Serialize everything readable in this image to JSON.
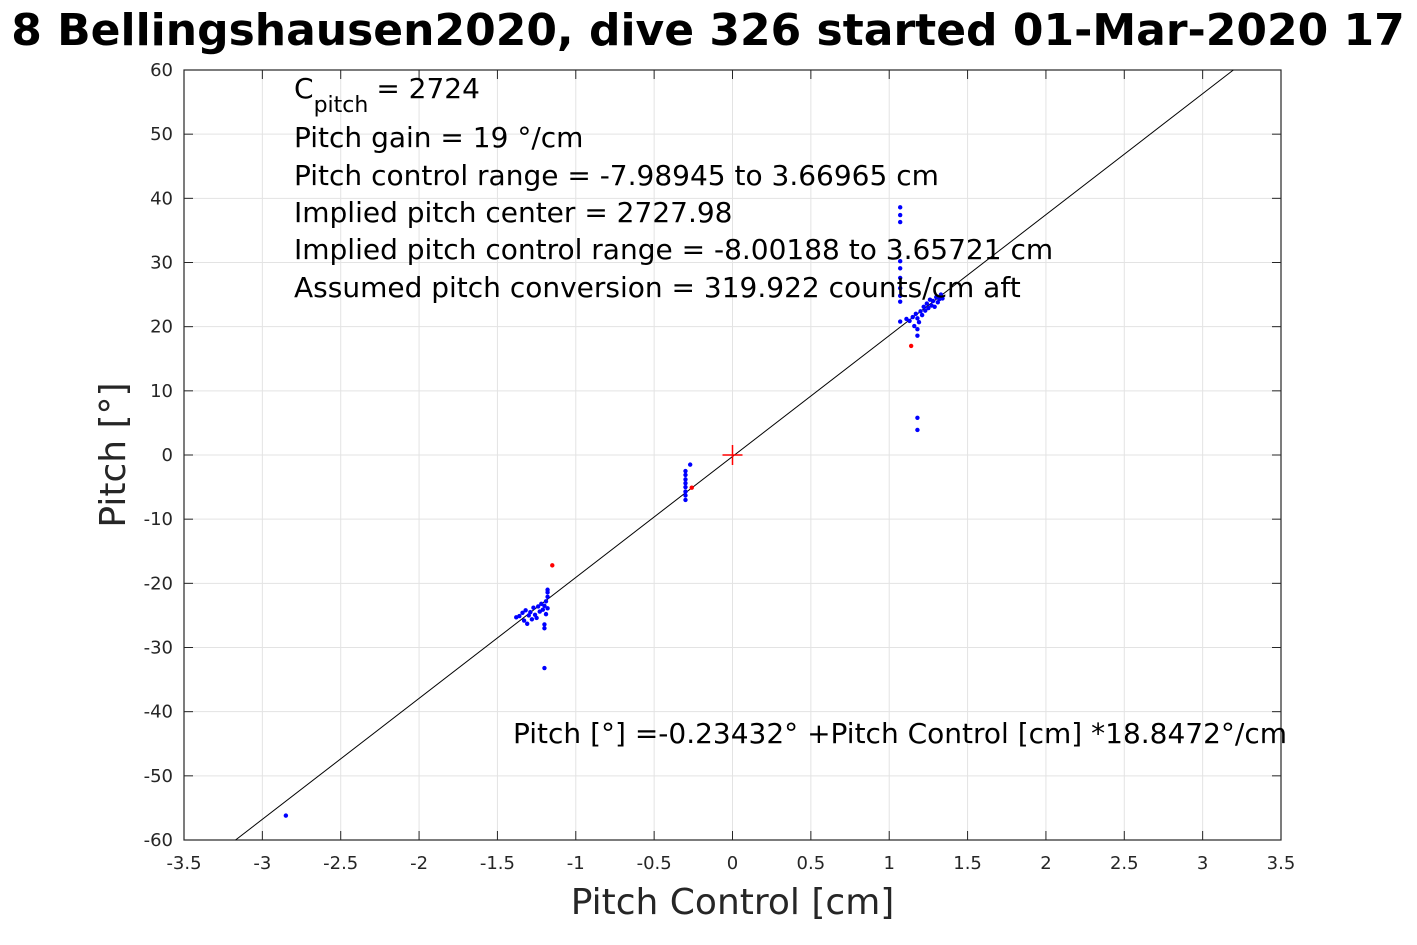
{
  "title": "8 Bellingshausen2020, dive 326 started 01-Mar-2020 17",
  "chart_data": {
    "type": "scatter",
    "title": "8 Bellingshausen2020, dive 326 started 01-Mar-2020 17",
    "xlabel": "Pitch Control [cm]",
    "ylabel": "Pitch [°]",
    "xlim": [
      -3.5,
      3.5
    ],
    "ylim": [
      -60,
      60
    ],
    "x_ticks": [
      -3.5,
      -3,
      -2.5,
      -2,
      -1.5,
      -1,
      -0.5,
      0,
      0.5,
      1,
      1.5,
      2,
      2.5,
      3,
      3.5
    ],
    "y_ticks": [
      60,
      50,
      40,
      30,
      20,
      10,
      0,
      -10,
      -20,
      -30,
      -40,
      -50,
      -60
    ],
    "x_tick_labels": [
      "-3.5",
      "-3",
      "-2.5",
      "-2",
      "-1.5",
      "-1",
      "-0.5",
      "0",
      "0.5",
      "1",
      "1.5",
      "2",
      "2.5",
      "3",
      "3.5"
    ],
    "y_tick_labels": [
      "60",
      "50",
      "40",
      "30",
      "20",
      "10",
      "0",
      "-10",
      "-20",
      "-30",
      "-40",
      "-50",
      "-60"
    ],
    "grid": true,
    "fit_line": {
      "intercept": -0.23432,
      "slope": 18.8472,
      "color": "#000000"
    },
    "center_marker": {
      "x": 0,
      "y": 0,
      "color": "#ff0000"
    },
    "series": [
      {
        "color": "#0000ff",
        "points": [
          [
            -2.85,
            -56.2
          ],
          [
            -1.38,
            -25.3
          ],
          [
            -1.36,
            -25.1
          ],
          [
            -1.34,
            -24.6
          ],
          [
            -1.33,
            -25.8
          ],
          [
            -1.32,
            -24.2
          ],
          [
            -1.31,
            -26.3
          ],
          [
            -1.3,
            -25.0
          ],
          [
            -1.29,
            -24.5
          ],
          [
            -1.28,
            -25.6
          ],
          [
            -1.27,
            -23.8
          ],
          [
            -1.26,
            -24.9
          ],
          [
            -1.25,
            -25.4
          ],
          [
            -1.24,
            -23.6
          ],
          [
            -1.23,
            -24.4
          ],
          [
            -1.22,
            -23.2
          ],
          [
            -1.21,
            -24.1
          ],
          [
            -1.2,
            -23.5
          ],
          [
            -1.2,
            -26.4
          ],
          [
            -1.2,
            -27.0
          ],
          [
            -1.2,
            -33.2
          ],
          [
            -1.19,
            -22.8
          ],
          [
            -1.19,
            -24.8
          ],
          [
            -1.18,
            -21.4
          ],
          [
            -1.18,
            -22.1
          ],
          [
            -1.18,
            -23.9
          ],
          [
            -1.18,
            -21.0
          ],
          [
            -0.3,
            -2.5
          ],
          [
            -0.3,
            -3.1
          ],
          [
            -0.3,
            -3.8
          ],
          [
            -0.3,
            -4.4
          ],
          [
            -0.3,
            -5.0
          ],
          [
            -0.3,
            -5.7
          ],
          [
            -0.3,
            -6.3
          ],
          [
            -0.3,
            -7.0
          ],
          [
            -0.27,
            -1.5
          ],
          [
            1.07,
            38.6
          ],
          [
            1.07,
            37.4
          ],
          [
            1.07,
            36.3
          ],
          [
            1.07,
            30.2
          ],
          [
            1.07,
            29.1
          ],
          [
            1.07,
            27.6
          ],
          [
            1.07,
            26.0
          ],
          [
            1.07,
            24.8
          ],
          [
            1.07,
            23.9
          ],
          [
            1.07,
            20.8
          ],
          [
            1.11,
            21.2
          ],
          [
            1.13,
            20.9
          ],
          [
            1.15,
            21.5
          ],
          [
            1.16,
            20.1
          ],
          [
            1.17,
            22.0
          ],
          [
            1.18,
            19.6
          ],
          [
            1.18,
            21.3
          ],
          [
            1.18,
            18.6
          ],
          [
            1.18,
            5.8
          ],
          [
            1.18,
            3.9
          ],
          [
            1.19,
            20.7
          ],
          [
            1.2,
            22.4
          ],
          [
            1.21,
            21.8
          ],
          [
            1.22,
            23.1
          ],
          [
            1.23,
            22.5
          ],
          [
            1.24,
            23.6
          ],
          [
            1.25,
            22.9
          ],
          [
            1.26,
            24.2
          ],
          [
            1.27,
            23.3
          ],
          [
            1.28,
            24.0
          ],
          [
            1.29,
            23.1
          ],
          [
            1.3,
            24.6
          ],
          [
            1.31,
            23.8
          ],
          [
            1.32,
            24.3
          ],
          [
            1.33,
            25.0
          ],
          [
            1.34,
            24.4
          ]
        ]
      },
      {
        "color": "#ff0000",
        "points": [
          [
            -1.15,
            -17.2
          ],
          [
            -0.26,
            -5.1
          ],
          [
            1.14,
            17.0
          ]
        ]
      }
    ],
    "annotations": [
      "= 2724",
      "Pitch gain = 19 °/cm",
      "Pitch control range = -7.98945 to 3.66965 cm",
      "Implied pitch center = 2727.98",
      "Implied pitch control range = -8.00188 to 3.65721 cm",
      "Assumed pitch conversion = 319.922 counts/cm aft"
    ],
    "cpitch_main": "C",
    "cpitch_sub": "pitch",
    "equation": "Pitch [°] =-0.23432° +Pitch Control [cm] *18.8472°/cm"
  }
}
